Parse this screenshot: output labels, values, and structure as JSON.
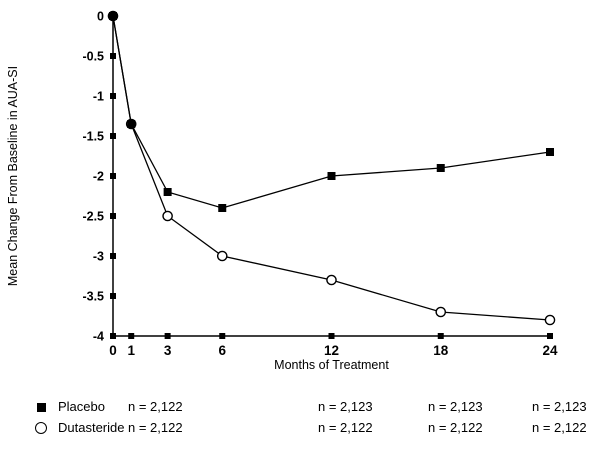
{
  "chart_data": {
    "type": "line",
    "title": "",
    "xlabel": "Months of Treatment",
    "ylabel": "Mean Change From Baseline in AUA-SI",
    "xlim": [
      0,
      24
    ],
    "ylim": [
      -4,
      0
    ],
    "x_ticks": [
      0,
      1,
      3,
      6,
      12,
      18,
      24
    ],
    "y_ticks": [
      0,
      -0.5,
      -1,
      -1.5,
      -2,
      -2.5,
      -3,
      -3.5,
      -4
    ],
    "y_tick_labels": [
      "0",
      "-0.5",
      "-1",
      "-1.5",
      "-2",
      "-2.5",
      "-3",
      "-3.5",
      "-4"
    ],
    "grid": false,
    "legend_position": "bottom",
    "series": [
      {
        "name": "Placebo",
        "marker": "filled-square",
        "x": [
          0,
          1,
          3,
          6,
          12,
          18,
          24
        ],
        "values": [
          0,
          -1.35,
          -2.2,
          -2.4,
          -2.0,
          -1.9,
          -1.7
        ]
      },
      {
        "name": "Dutasteride",
        "marker": "open-circle",
        "x": [
          0,
          1,
          3,
          6,
          12,
          18,
          24
        ],
        "values": [
          0,
          -1.35,
          -2.5,
          -3.0,
          -3.3,
          -3.7,
          -3.8
        ]
      }
    ],
    "legend": {
      "rows": [
        {
          "marker": "filled-square",
          "label": "Placebo",
          "counts": [
            "n = 2,122",
            "n = 2,123",
            "n = 2,123",
            "n = 2,123"
          ]
        },
        {
          "marker": "open-circle",
          "label": "Dutasteride",
          "counts": [
            "n = 2,122",
            "n = 2,122",
            "n = 2,122",
            "n = 2,122"
          ]
        }
      ]
    }
  }
}
